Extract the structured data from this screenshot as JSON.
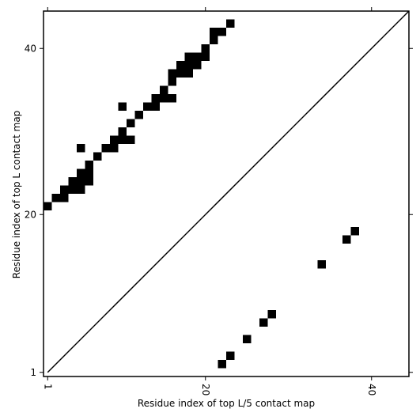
{
  "chart_data": {
    "type": "scatter",
    "xlabel": "Residue index of top L/5 contact map",
    "ylabel": "Residue index of top L contact map",
    "color": "#000000",
    "x": [
      1,
      2,
      3,
      3,
      4,
      5,
      4,
      5,
      6,
      5,
      6,
      6,
      5,
      7,
      8,
      9,
      9,
      10,
      11,
      10,
      11,
      12,
      10,
      13,
      14,
      14,
      15,
      16,
      15,
      16,
      16,
      17,
      18,
      17,
      18,
      19,
      18,
      19,
      20,
      20,
      21,
      21,
      22,
      23,
      22,
      23,
      25,
      27,
      28,
      34,
      37,
      38
    ],
    "values": [
      21,
      22,
      22,
      23,
      23,
      23,
      24,
      24,
      24,
      25,
      25,
      26,
      28,
      27,
      28,
      28,
      29,
      29,
      29,
      30,
      31,
      32,
      33,
      33,
      33,
      34,
      34,
      34,
      35,
      36,
      37,
      37,
      37,
      38,
      38,
      38,
      39,
      39,
      39,
      40,
      41,
      42,
      42,
      43,
      2,
      3,
      5,
      7,
      8,
      14,
      17,
      18
    ],
    "xlim": [
      0.5,
      44.5
    ],
    "ylim": [
      0.5,
      44.5
    ],
    "xticks": [
      1,
      20,
      40
    ],
    "yticks": [
      1,
      20,
      40
    ]
  }
}
